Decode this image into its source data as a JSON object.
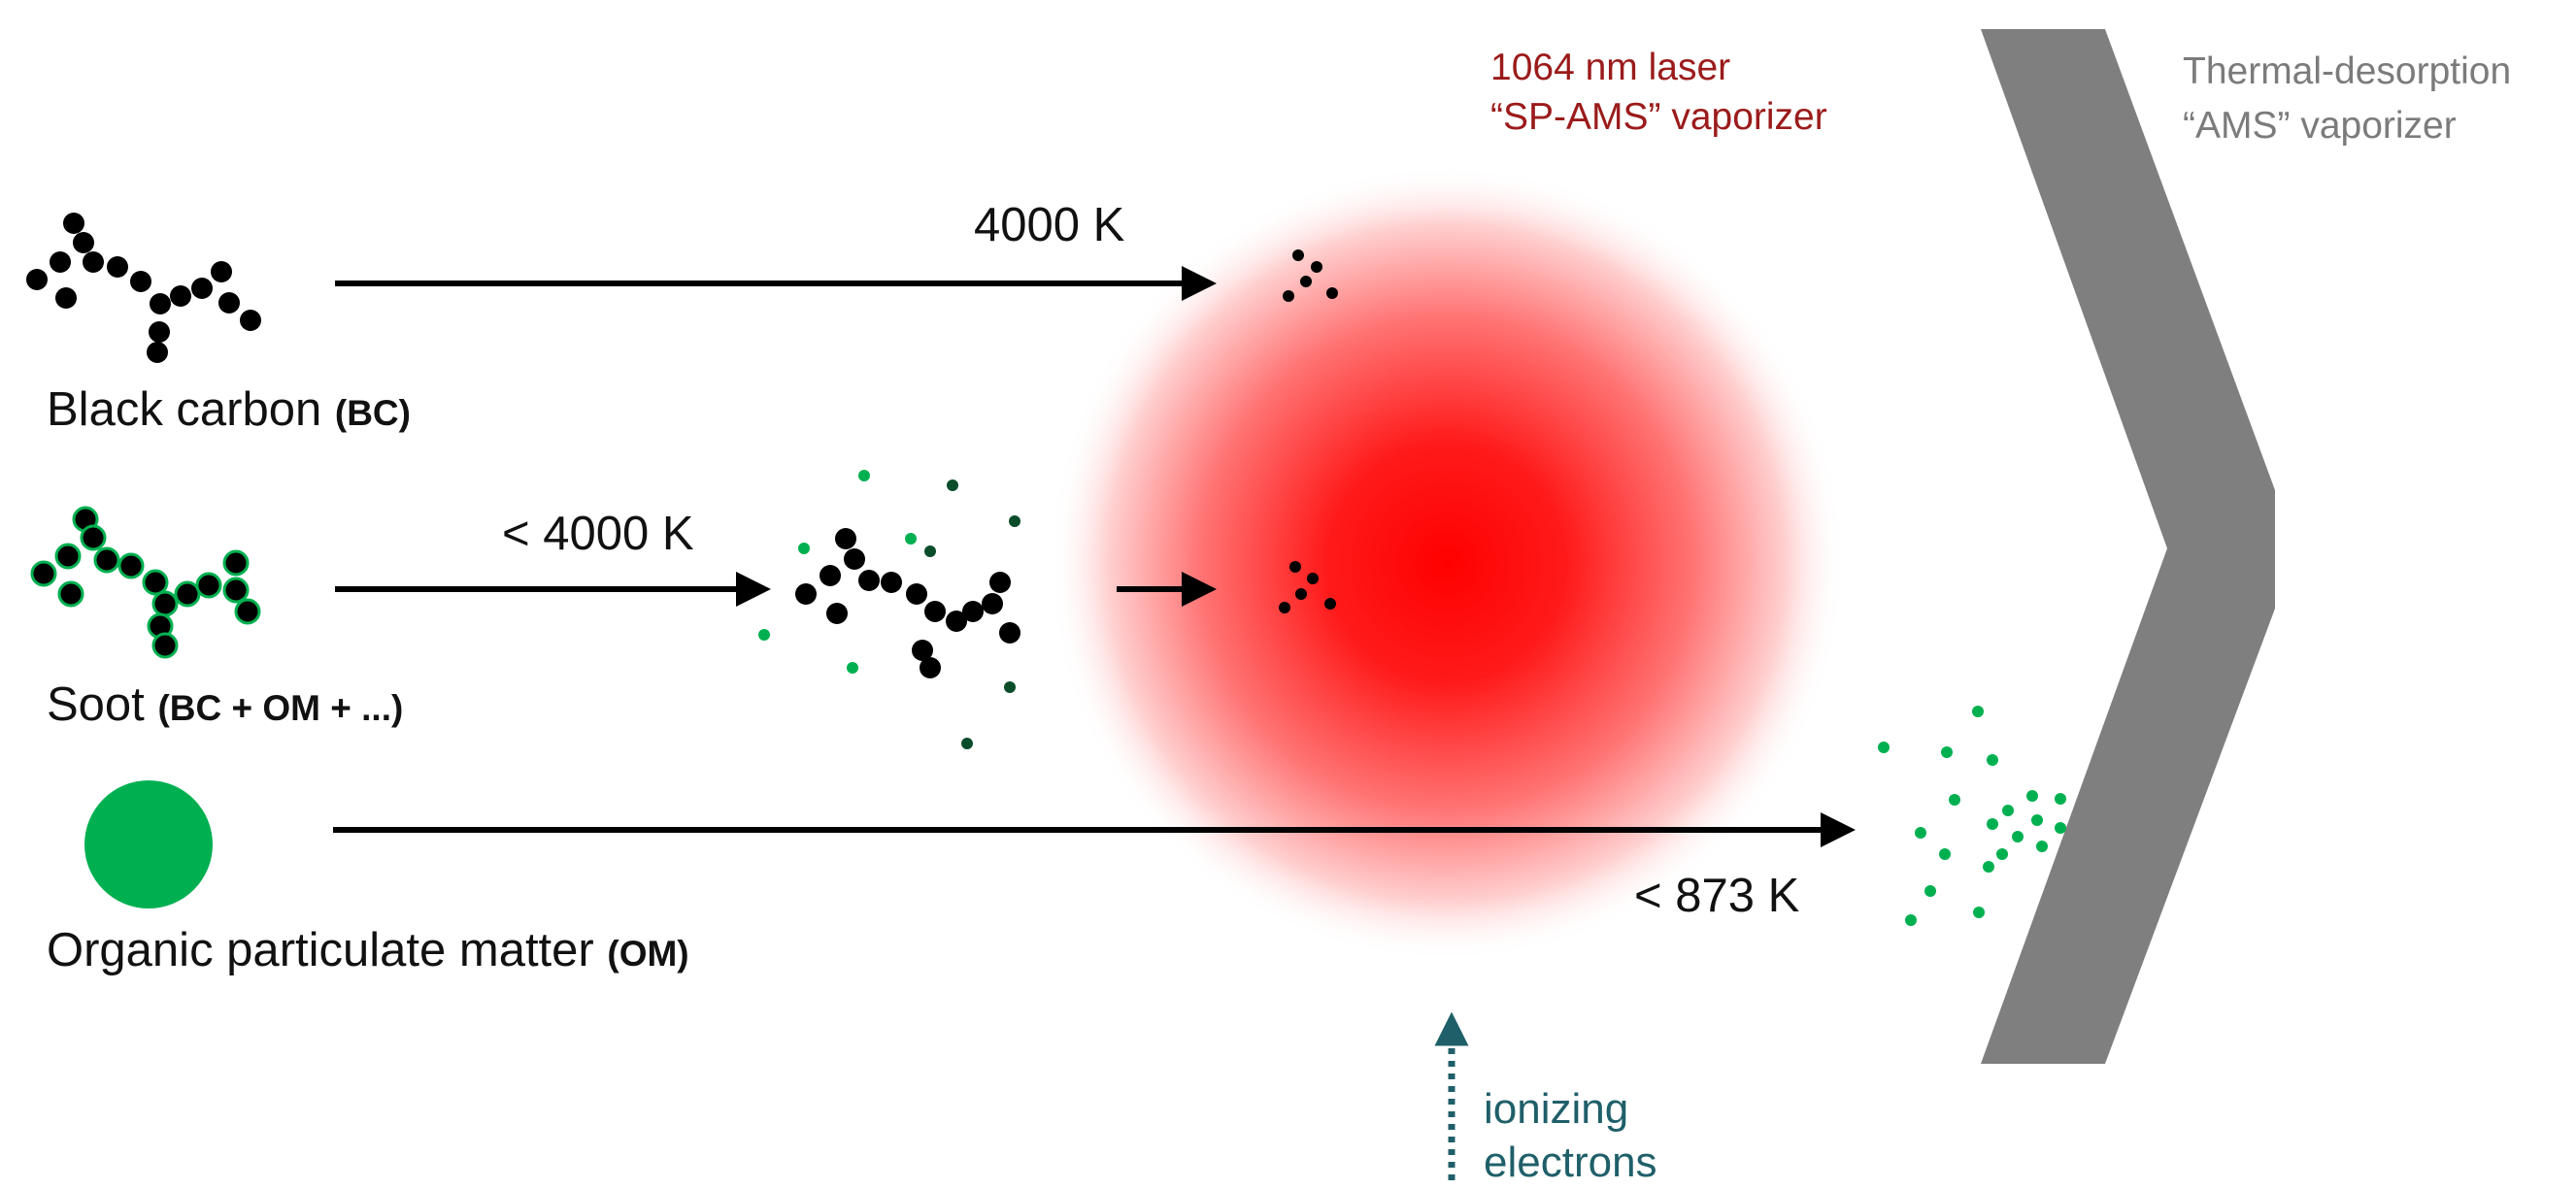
{
  "particles": {
    "bc": {
      "name": "Black carbon",
      "abbrev": "(BC)"
    },
    "soot": {
      "name": "Soot",
      "abbrev": "(BC + OM + ...)"
    },
    "om": {
      "name": "Organic particulate matter",
      "abbrev": "(OM)"
    }
  },
  "temperatures": {
    "bc_path": "4000 K",
    "soot_path": "< 4000 K",
    "om_path": "< 873 K"
  },
  "laser_vaporizer": {
    "line1": "1064 nm laser",
    "line2": "“SP-AMS” vaporizer"
  },
  "thermal_vaporizer": {
    "line1": "Thermal-desorption",
    "line2": "“AMS” vaporizer"
  },
  "electrons": {
    "line1": "ionizing",
    "line2": "electrons"
  },
  "colors": {
    "bc": "#000000",
    "om_green": "#00b050",
    "dark_green": "#0a4d2a",
    "laser_red": "#ff0000",
    "laser_text": "#9b1b1b",
    "vaporizer_gray": "#7f7f7f",
    "electron_teal": "#1f5f69"
  }
}
